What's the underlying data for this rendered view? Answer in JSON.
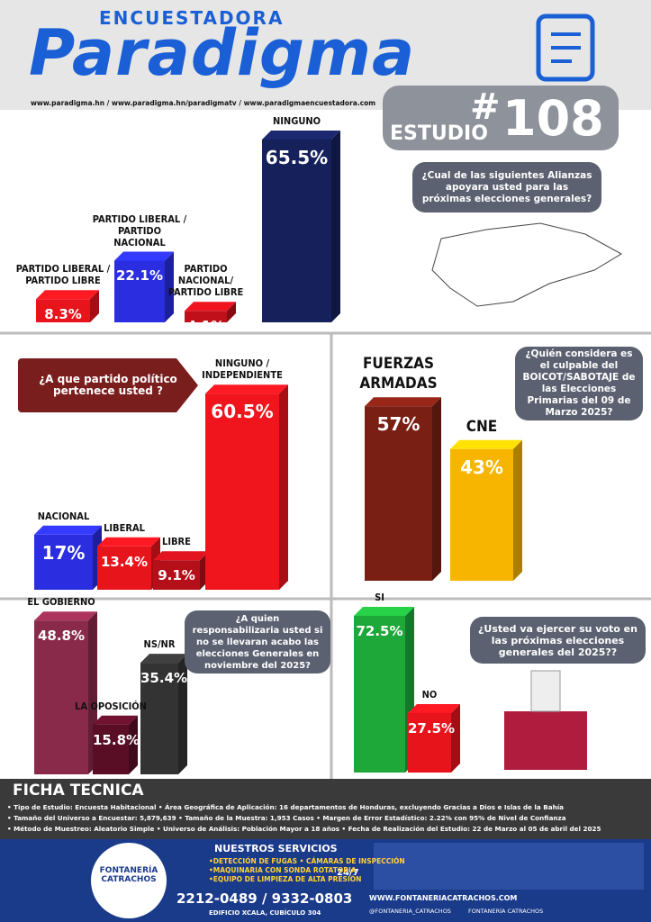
{
  "header": {
    "brand_top": "ENCUESTADORA",
    "brand": "Paradigma",
    "links": "www.paradigma.hn / www.paradigma.hn/paradigmatv / www.paradigmaencuestadora.com",
    "study_hash": "#",
    "study_label": "ESTUDIO",
    "study_number": "108"
  },
  "chart_data": [
    {
      "type": "bar",
      "title": "¿Cual de las siguientes Alianzas apoyara usted para las próximas elecciones generales?",
      "categories": [
        "PARTIDO LIBERAL / PARTIDO LIBRE",
        "PARTIDO LIBERAL / PARTIDO NACIONAL",
        "PARTIDO NACIONAL/ PARTIDO LIBRE",
        "NINGUNO"
      ],
      "values": [
        8.3,
        22.1,
        4.1,
        65.5
      ],
      "value_labels": [
        "8.3%",
        "22.1%",
        "4.1%",
        "65.5%"
      ],
      "colors": [
        "#e8141c",
        "#2a2ee0",
        "#c0101a",
        "#16205a"
      ]
    },
    {
      "type": "bar",
      "title": "¿A que partido político pertenece usted ?",
      "categories": [
        "NACIONAL",
        "LIBERAL",
        "LIBRE",
        "NINGUNO / INDEPENDIENTE"
      ],
      "values": [
        17,
        13.4,
        9.1,
        60.5
      ],
      "value_labels": [
        "17%",
        "13.4%",
        "9.1%",
        "60.5%"
      ],
      "colors": [
        "#2a2ee0",
        "#e8141c",
        "#b5101a",
        "#f0141c"
      ]
    },
    {
      "type": "bar",
      "title": "¿Quién considera es el culpable del BOICOT/SABOTAJE de las Elecciones Primarias del 09 de Marzo 2025?",
      "categories": [
        "FUERZAS ARMADAS",
        "CNE"
      ],
      "values": [
        57,
        43
      ],
      "value_labels": [
        "57%",
        "43%"
      ],
      "colors": [
        "#7a1f14",
        "#f7b500"
      ]
    },
    {
      "type": "bar",
      "title": "¿A quien responsabilizaria usted si no se llevaran acabo las elecciones Generales en noviembre del 2025?",
      "categories": [
        "EL GOBIERNO",
        "LA OPOSICIÓN",
        "NS/NR"
      ],
      "values": [
        48.8,
        15.8,
        35.4
      ],
      "value_labels": [
        "48.8%",
        "15.8%",
        "35.4%"
      ],
      "colors": [
        "#8a2a4a",
        "#5a0e26",
        "#333333"
      ]
    },
    {
      "type": "bar",
      "title": "¿Usted va ejercer su voto en las próximas elecciones generales del 2025??",
      "categories": [
        "SI",
        "NO"
      ],
      "values": [
        72.5,
        27.5
      ],
      "value_labels": [
        "72.5%",
        "27.5%"
      ],
      "colors": [
        "#1fa83a",
        "#e8141c"
      ]
    }
  ],
  "ficha": {
    "title": "FICHA TECNICA",
    "lines": [
      "• Tipo de Estudio: Encuesta Habitacional • Área Geográfica de Aplicación: 16 departamentos de Honduras, excluyendo Gracias a Dios e Islas de la Bahía",
      "• Tamaño del Universo a Encuestar: 5,879,639 • Tamaño de la Muestra: 1,953 Casos • Margen de Error Estadístico: 2.22% con 95% de Nivel de Confianza",
      "• Método de Muestreo: Aleatorio Simple • Universo de Análisis: Población Mayor a 18 años • Fecha de Realización del Estudio: 22 de Marzo al 05 de abril del 2025"
    ]
  },
  "footer": {
    "brand": "FONTANERÍA CATRACHOS",
    "services_title": "NUESTROS SERVICIOS",
    "services": [
      "•DETECCIÓN DE FUGAS • CÁMARAS DE INSPECCIÓN",
      "•MAQUINARIA CON SONDA ROTATORIA",
      "•EQUIPO DE LIMPIEZA DE ALTA PRESIÓN"
    ],
    "hours": "24/7",
    "phone": "2212-0489 / 9332-0803",
    "address": "EDIFICIO XCALA, CUBÍCULO 304",
    "web": "WWW.FONTANERIACATRACHOS.COM",
    "social_1": "@FONTANERIA_CATRACHOS",
    "social_2": "FONTANERÍA CATRACHOS"
  }
}
